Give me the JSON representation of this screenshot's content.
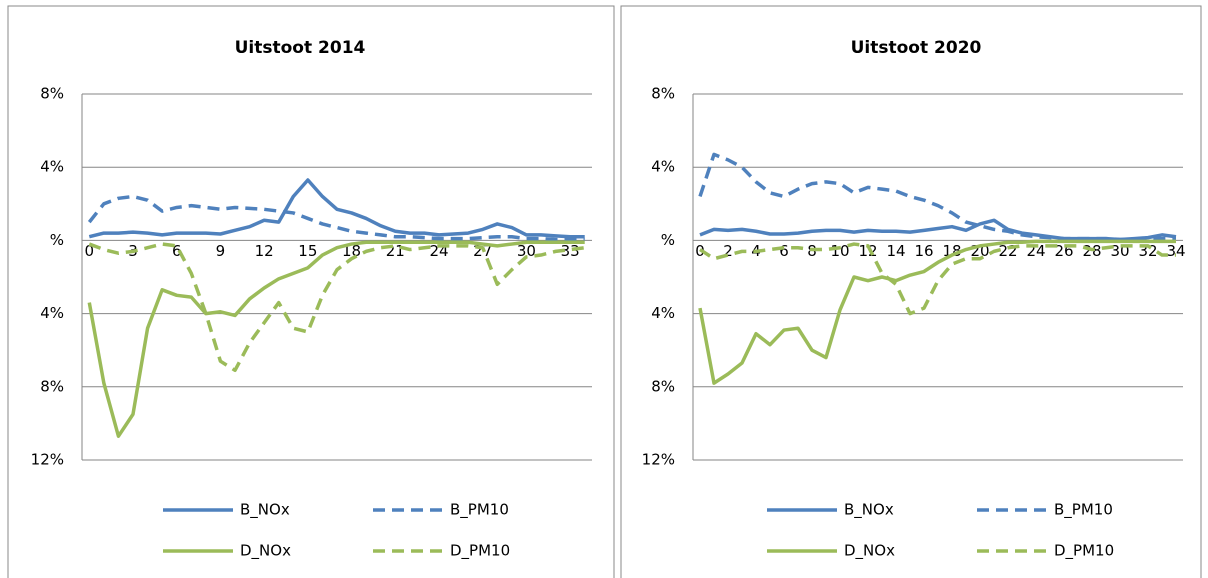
{
  "chart_data": [
    {
      "type": "line",
      "title": "Uitstoot 2014",
      "categories": [
        0,
        null,
        null,
        3,
        null,
        null,
        6,
        null,
        null,
        9,
        null,
        null,
        12,
        null,
        null,
        15,
        null,
        null,
        18,
        null,
        null,
        21,
        null,
        null,
        24,
        null,
        null,
        27,
        null,
        null,
        30,
        null,
        null,
        33,
        null
      ],
      "ylim": [
        -12,
        8
      ],
      "yticks": [
        {
          "value": 8,
          "label": "8%"
        },
        {
          "value": 4,
          "label": "4%"
        },
        {
          "value": 0,
          "label": "%"
        },
        {
          "value": -4,
          "label": "4%"
        },
        {
          "value": -8,
          "label": "8%"
        },
        {
          "value": -12,
          "label": "12%"
        }
      ],
      "grid": true,
      "series": [
        {
          "name": "B_NOx",
          "color": "#4f81bd",
          "style": "solid",
          "values": [
            0.2,
            0.4,
            0.4,
            0.45,
            0.4,
            0.3,
            0.4,
            0.4,
            0.4,
            0.35,
            0.55,
            0.75,
            1.1,
            1.0,
            2.4,
            3.3,
            2.4,
            1.7,
            1.5,
            1.2,
            0.8,
            0.5,
            0.4,
            0.4,
            0.3,
            0.35,
            0.4,
            0.6,
            0.9,
            0.7,
            0.3,
            0.3,
            0.25,
            0.2,
            0.2
          ]
        },
        {
          "name": "B_PM10",
          "color": "#4f81bd",
          "style": "dashed",
          "values": [
            1.0,
            2.0,
            2.3,
            2.4,
            2.2,
            1.6,
            1.8,
            1.9,
            1.8,
            1.7,
            1.8,
            1.75,
            1.7,
            1.6,
            1.5,
            1.2,
            0.9,
            0.7,
            0.5,
            0.4,
            0.3,
            0.2,
            0.2,
            0.15,
            0.1,
            0.1,
            0.1,
            0.15,
            0.2,
            0.2,
            0.1,
            0.1,
            0.05,
            0.05,
            0.05
          ]
        },
        {
          "name": "D_NOx",
          "color": "#9bbb59",
          "style": "solid",
          "values": [
            -3.4,
            -7.8,
            -10.7,
            -9.5,
            -4.8,
            -2.7,
            -3.0,
            -3.1,
            -4.0,
            -3.9,
            -4.1,
            -3.2,
            -2.6,
            -2.1,
            -1.8,
            -1.5,
            -0.8,
            -0.4,
            -0.2,
            -0.1,
            -0.1,
            -0.1,
            -0.1,
            -0.1,
            -0.1,
            -0.1,
            -0.1,
            -0.2,
            -0.3,
            -0.2,
            -0.1,
            -0.1,
            -0.1,
            -0.1,
            -0.1
          ]
        },
        {
          "name": "D_PM10",
          "color": "#9bbb59",
          "style": "dashed",
          "values": [
            -0.2,
            -0.5,
            -0.7,
            -0.6,
            -0.4,
            -0.2,
            -0.3,
            -1.8,
            -4.0,
            -6.6,
            -7.1,
            -5.6,
            -4.5,
            -3.4,
            -4.8,
            -5.0,
            -3.0,
            -1.6,
            -1.0,
            -0.6,
            -0.4,
            -0.3,
            -0.5,
            -0.4,
            -0.3,
            -0.3,
            -0.3,
            -0.4,
            -2.4,
            -1.6,
            -0.9,
            -0.8,
            -0.6,
            -0.5,
            -0.4
          ]
        }
      ]
    },
    {
      "type": "line",
      "title": "Uitstoot 2020",
      "categories": [
        0,
        null,
        2,
        null,
        4,
        null,
        6,
        null,
        8,
        null,
        10,
        null,
        12,
        null,
        14,
        null,
        16,
        null,
        18,
        null,
        20,
        null,
        22,
        null,
        24,
        null,
        26,
        null,
        28,
        null,
        30,
        null,
        32,
        null,
        34
      ],
      "ylim": [
        -12,
        8
      ],
      "yticks": [
        {
          "value": 8,
          "label": "8%"
        },
        {
          "value": 4,
          "label": "4%"
        },
        {
          "value": 0,
          "label": "%"
        },
        {
          "value": -4,
          "label": "4%"
        },
        {
          "value": -8,
          "label": "8%"
        },
        {
          "value": -12,
          "label": "12%"
        }
      ],
      "grid": true,
      "series": [
        {
          "name": "B_NOx",
          "color": "#4f81bd",
          "style": "solid",
          "values": [
            0.3,
            0.6,
            0.55,
            0.6,
            0.5,
            0.35,
            0.35,
            0.4,
            0.5,
            0.55,
            0.55,
            0.45,
            0.55,
            0.5,
            0.5,
            0.45,
            0.55,
            0.65,
            0.75,
            0.55,
            0.9,
            1.1,
            0.6,
            0.4,
            0.3,
            0.2,
            0.1,
            0.1,
            0.1,
            0.1,
            0.05,
            0.1,
            0.15,
            0.3,
            0.2
          ]
        },
        {
          "name": "B_PM10",
          "color": "#4f81bd",
          "style": "dashed",
          "values": [
            2.4,
            4.7,
            4.4,
            4.0,
            3.2,
            2.6,
            2.4,
            2.8,
            3.1,
            3.2,
            3.1,
            2.6,
            2.9,
            2.8,
            2.7,
            2.4,
            2.2,
            1.9,
            1.5,
            1.0,
            0.8,
            0.6,
            0.5,
            0.3,
            0.2,
            0.15,
            0.1,
            0.1,
            0.1,
            0.1,
            0.05,
            0.05,
            0.1,
            0.1,
            0.1
          ]
        },
        {
          "name": "D_NOx",
          "color": "#9bbb59",
          "style": "solid",
          "values": [
            -3.7,
            -7.8,
            -7.3,
            -6.7,
            -5.1,
            -5.7,
            -4.9,
            -4.8,
            -6.0,
            -6.4,
            -3.8,
            -2.0,
            -2.2,
            -2.0,
            -2.2,
            -1.9,
            -1.7,
            -1.2,
            -0.8,
            -0.5,
            -0.3,
            -0.2,
            -0.1,
            -0.1,
            -0.05,
            -0.05,
            -0.05,
            -0.05,
            -0.05,
            -0.05,
            -0.05,
            -0.05,
            -0.05,
            -0.05,
            -0.05
          ]
        },
        {
          "name": "D_PM10",
          "color": "#9bbb59",
          "style": "dashed",
          "values": [
            -0.5,
            -1.0,
            -0.8,
            -0.6,
            -0.6,
            -0.5,
            -0.4,
            -0.4,
            -0.5,
            -0.5,
            -0.4,
            -0.2,
            -0.3,
            -1.8,
            -2.4,
            -4.0,
            -3.7,
            -2.2,
            -1.3,
            -1.0,
            -1.0,
            -0.6,
            -0.4,
            -0.3,
            -0.3,
            -0.3,
            -0.3,
            -0.3,
            -0.5,
            -0.4,
            -0.3,
            -0.3,
            -0.3,
            -0.8,
            -0.8
          ]
        }
      ]
    }
  ]
}
